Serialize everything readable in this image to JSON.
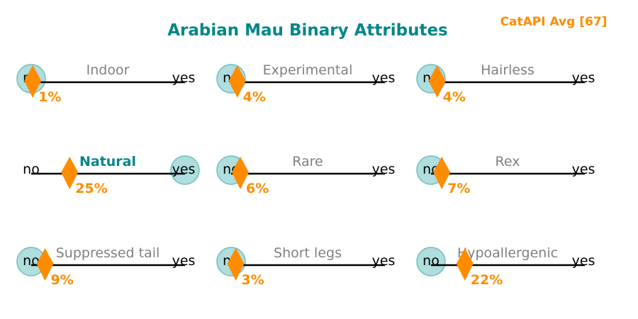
{
  "chart_data": {
    "type": "scatter",
    "title": "Arabian Mau Binary Attributes",
    "annotation": "CatAPI Avg [67]",
    "scale_labels": {
      "low": "no",
      "high": "yes"
    },
    "attributes": [
      {
        "name": "Indoor",
        "value": 1,
        "value_label": "1%",
        "vote": "no",
        "highlight": false
      },
      {
        "name": "Experimental",
        "value": 4,
        "value_label": "4%",
        "vote": "no",
        "highlight": false
      },
      {
        "name": "Hairless",
        "value": 4,
        "value_label": "4%",
        "vote": "no",
        "highlight": false
      },
      {
        "name": "Natural",
        "value": 25,
        "value_label": "25%",
        "vote": "yes",
        "highlight": true
      },
      {
        "name": "Rare",
        "value": 6,
        "value_label": "6%",
        "vote": "no",
        "highlight": false
      },
      {
        "name": "Rex",
        "value": 7,
        "value_label": "7%",
        "vote": "no",
        "highlight": false
      },
      {
        "name": "Suppressed tail",
        "value": 9,
        "value_label": "9%",
        "vote": "no",
        "highlight": false
      },
      {
        "name": "Short legs",
        "value": 3,
        "value_label": "3%",
        "vote": "no",
        "highlight": false
      },
      {
        "name": "Hypoallergenic",
        "value": 22,
        "value_label": "22%",
        "vote": "no",
        "highlight": false
      }
    ],
    "colors": {
      "title": "#00868b",
      "marker": "#ff8c00",
      "vote_circle": "#8fcfcf",
      "label": "#808080"
    }
  }
}
